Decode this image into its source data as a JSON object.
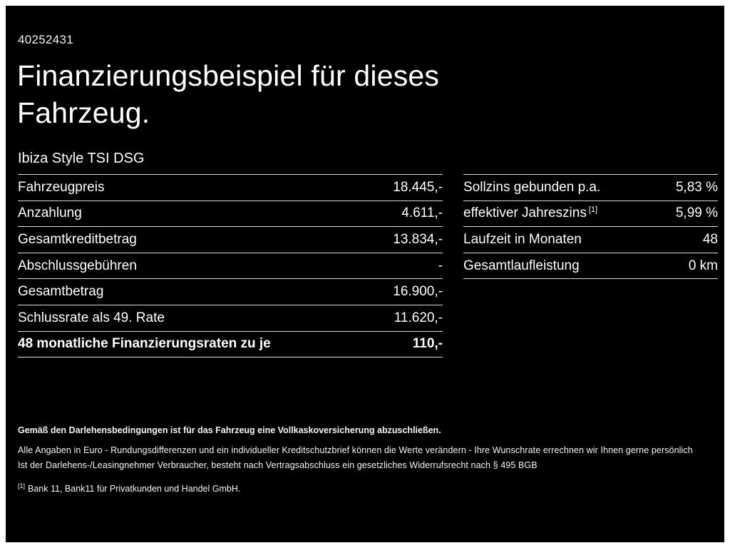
{
  "header": {
    "vehicle_id": "40252431",
    "title_line1": "Finanzierungsbeispiel für dieses",
    "title_line2": "Fahrzeug.",
    "model": "Ibiza Style TSI DSG"
  },
  "financing_table": {
    "rows": [
      {
        "label": "Fahrzeugpreis",
        "value": "18.445,-"
      },
      {
        "label": "Anzahlung",
        "value": "4.611,-"
      },
      {
        "label": "Gesamtkreditbetrag",
        "value": "13.834,-"
      },
      {
        "label": "Abschlussgebühren",
        "value": "-"
      },
      {
        "label": "Gesamtbetrag",
        "value": "16.900,-"
      },
      {
        "label": "Schlussrate als 49. Rate",
        "value": "11.620,-"
      },
      {
        "label": "48 monatliche Finanzierungsraten zu je",
        "value": "110,-"
      }
    ]
  },
  "conditions_table": {
    "rows": [
      {
        "label": "Sollzins gebunden p.a.",
        "marker": "",
        "value": "5,83 %"
      },
      {
        "label": "effektiver Jahreszins",
        "marker": "[1]",
        "value": "5,99 %"
      },
      {
        "label": "Laufzeit in Monaten",
        "marker": "",
        "value": "48"
      },
      {
        "label": "Gesamtlaufleistung",
        "marker": "",
        "value": "0 km"
      }
    ]
  },
  "footnotes": {
    "insurance_note": "Gemäß den Darlehensbedingungen ist für das Fahrzeug eine Vollkaskoversicherung abzuschließen.",
    "disclaimer_line1": "Alle Angaben in Euro - Rundungsdifferenzen und ein individueller Kreditschutzbrief können die Werte verändern - Ihre Wunschrate errechnen wir Ihnen gerne persönlich",
    "disclaimer_line2": "Ist der Darlehens-/Leasingnehmer Verbraucher, besteht nach Vertragsabschluss ein gesetzliches Widerrufsrecht nach § 495 BGB",
    "ref_marker": "[1]",
    "ref_text": "Bank 11, Bank11 für Privatkunden und Handel GmbH."
  },
  "colors": {
    "background": "#000000",
    "text": "#ffffff",
    "divider": "#dcdcdc"
  }
}
